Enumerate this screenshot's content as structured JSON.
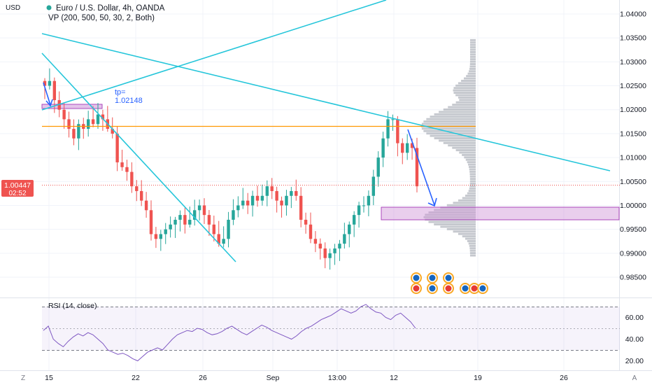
{
  "header": {
    "symbol_title": "Euro / U.S. Dollar, 4h, OANDA",
    "indicator_line": "VP (200, 500, 50, 30, 2, Both)",
    "currency": "USD"
  },
  "price_badge": {
    "price": "1.00447",
    "countdown": "02:52",
    "color": "#ef5350"
  },
  "annotation": {
    "tp_label": "tp=",
    "tp_value": "1.02148"
  },
  "rsi_panel": {
    "title": "RSI (14, close)",
    "ticks": [
      "60.00",
      "40.00",
      "20.00"
    ]
  },
  "bottom_bar": {
    "left_icon": "zoom-icon",
    "left_label": "Z",
    "right_label": "A"
  },
  "colors": {
    "up": "#26a69a",
    "down": "#ef5350",
    "trendline": "#26c6da",
    "horizontal": "#ff9800",
    "zone": "#ce93d8",
    "arrow": "#2962ff",
    "volume_profile": "#b2b5be",
    "rsi_line": "#7e57c2"
  },
  "chart_data": [
    {
      "type": "candlestick",
      "title": "Euro / U.S. Dollar, 4h, OANDA",
      "ylabel": "USD",
      "ylim": [
        0.9807,
        1.0425
      ],
      "y_ticks": [
        "1.04000",
        "1.03500",
        "1.03000",
        "1.02500",
        "1.02000",
        "1.01500",
        "1.01000",
        "1.00500",
        "1.00000",
        "0.99500",
        "0.99000",
        "0.98500"
      ],
      "x_ticks": [
        "15",
        "22",
        "26",
        "Sep",
        "13:00",
        "12",
        "19",
        "26"
      ],
      "last_price": 1.00447,
      "levels": {
        "resistance": 1.0167,
        "tp": 1.02148
      },
      "demand_zone": [
        0.9972,
        1.0
      ],
      "close_path": [
        1.025,
        1.026,
        1.022,
        1.02,
        1.018,
        1.016,
        1.014,
        1.017,
        1.016,
        1.018,
        1.017,
        1.019,
        1.018,
        1.016,
        1.015,
        1.009,
        1.008,
        1.007,
        1.004,
        1.003,
        1.001,
        0.999,
        0.994,
        0.993,
        0.994,
        0.995,
        0.996,
        0.997,
        0.998,
        0.996,
        0.997,
        0.999,
        1.0,
        0.998,
        0.996,
        0.994,
        0.992,
        0.993,
        0.997,
        0.999,
        1.0,
        1.001,
        1.0,
        1.002,
        1.001,
        1.002,
        1.004,
        1.003,
        1.001,
        1.0,
        1.002,
        1.003,
        1.002,
        0.997,
        0.996,
        0.993,
        0.992,
        0.991,
        0.989,
        0.99,
        0.991,
        0.992,
        0.994,
        0.996,
        0.998,
        1.0,
        1.0,
        1.002,
        1.006,
        1.01,
        1.014,
        1.018,
        1.018,
        1.013,
        1.011,
        1.013,
        1.012,
        1.004
      ]
    },
    {
      "type": "line",
      "title": "RSI (14, close)",
      "ylim": [
        10,
        78
      ],
      "y_ticks": [
        "60.00",
        "40.00",
        "20.00"
      ],
      "bands": [
        30,
        50,
        70
      ],
      "values": [
        48,
        52,
        40,
        36,
        33,
        38,
        42,
        45,
        43,
        46,
        44,
        40,
        36,
        30,
        28,
        26,
        27,
        25,
        22,
        20,
        24,
        28,
        30,
        32,
        30,
        35,
        40,
        44,
        46,
        48,
        47,
        50,
        49,
        46,
        44,
        45,
        47,
        50,
        52,
        49,
        46,
        44,
        47,
        50,
        53,
        51,
        48,
        46,
        44,
        42,
        40,
        43,
        47,
        50,
        52,
        55,
        58,
        60,
        62,
        65,
        68,
        66,
        64,
        66,
        70,
        72,
        68,
        65,
        64,
        60,
        58,
        62,
        64,
        60,
        56,
        50
      ]
    }
  ]
}
